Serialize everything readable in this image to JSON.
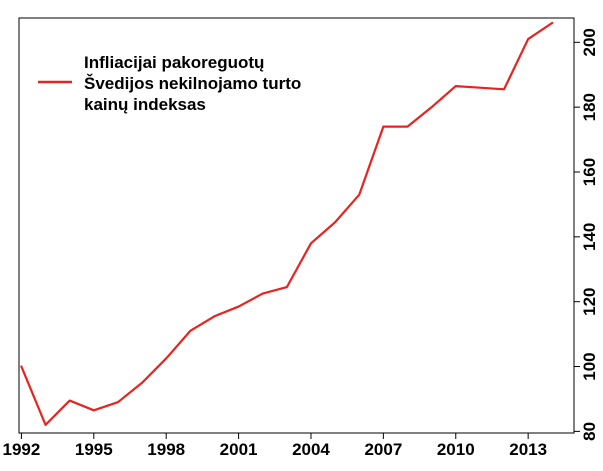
{
  "chart_data": {
    "type": "line",
    "title": "",
    "xlabel": "",
    "ylabel": "",
    "x_ticks": [
      "1992",
      "1995",
      "1998",
      "2001",
      "2004",
      "2007",
      "2010",
      "2013"
    ],
    "y_ticks": [
      "80",
      "100",
      "120",
      "140",
      "160",
      "180",
      "200"
    ],
    "xlim": [
      1991.9,
      2014.9
    ],
    "ylim": [
      79.5,
      207.5
    ],
    "y_axis_side": "right",
    "y_tick_rotation": "vertical",
    "grid": false,
    "legend_position": "top-left",
    "series": [
      {
        "name": "Infliacijai pakoreguotų Švedijos nekilnojamo turto kainų indeksas",
        "color": "#e8231f",
        "x": [
          1992,
          1993,
          1994,
          1995,
          1996,
          1997,
          1998,
          1999,
          2000,
          2001,
          2002,
          2003,
          2004,
          2005,
          2006,
          2007,
          2008,
          2009,
          2010,
          2011,
          2012,
          2013,
          2014
        ],
        "y": [
          100,
          82,
          89.5,
          86.5,
          89,
          95,
          102.5,
          111,
          115.5,
          118.5,
          122.5,
          124.5,
          138,
          144.5,
          153,
          174,
          174,
          180,
          186.5,
          186,
          185.5,
          201,
          206
        ]
      }
    ]
  },
  "legend": {
    "lines": [
      "Infliacijai pakoreguotų",
      "Švedijos nekilnojamo turto",
      "kainų indeksas"
    ]
  }
}
